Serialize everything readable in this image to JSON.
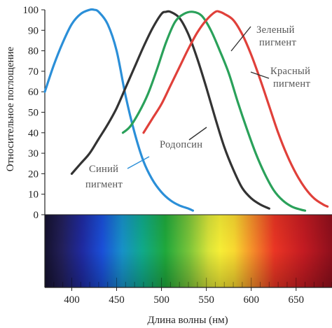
{
  "chart_data": {
    "type": "line",
    "xlabel": "Длина волны (нм)",
    "ylabel": "Относительное поглощение",
    "xlim": [
      370,
      690
    ],
    "ylim": [
      0,
      100
    ],
    "x_ticks": [
      400,
      450,
      500,
      550,
      600,
      650
    ],
    "y_ticks": [
      0,
      10,
      20,
      30,
      40,
      50,
      60,
      70,
      80,
      90,
      100
    ],
    "spectrum_bar": true,
    "series": [
      {
        "key": "blue",
        "color": "#2b8fd8",
        "x": [
          370,
          380,
          390,
          400,
          410,
          420,
          425,
          430,
          440,
          450,
          460,
          470,
          480,
          490,
          500,
          510,
          520,
          530,
          535
        ],
        "y": [
          60,
          73,
          84,
          93,
          98,
          100,
          100,
          99,
          93,
          80,
          58,
          40,
          26,
          17,
          11,
          7,
          4.5,
          3,
          2
        ]
      },
      {
        "key": "rhodopsin",
        "color": "#333333",
        "x": [
          400,
          410,
          420,
          430,
          440,
          450,
          460,
          470,
          480,
          490,
          500,
          505,
          510,
          520,
          530,
          540,
          550,
          560,
          570,
          580,
          590,
          600,
          610,
          620
        ],
        "y": [
          20,
          25,
          30,
          37,
          44,
          52,
          62,
          72,
          82,
          91,
          98,
          99,
          99,
          96,
          88,
          76,
          62,
          47,
          33,
          22,
          13,
          8,
          5,
          3
        ]
      },
      {
        "key": "green",
        "color": "#2aa15a",
        "x": [
          457,
          465,
          475,
          485,
          495,
          505,
          515,
          525,
          535,
          545,
          555,
          565,
          575,
          585,
          595,
          605,
          615,
          625,
          635,
          645,
          655,
          660
        ],
        "y": [
          40,
          43,
          50,
          59,
          71,
          84,
          94,
          98,
          99,
          97,
          90,
          80,
          69,
          55,
          42,
          30,
          20,
          12,
          7,
          4,
          2.5,
          2
        ]
      },
      {
        "key": "red",
        "color": "#e0403a",
        "x": [
          480,
          490,
          500,
          510,
          520,
          530,
          540,
          550,
          560,
          565,
          570,
          580,
          590,
          600,
          610,
          620,
          630,
          640,
          650,
          660,
          670,
          680,
          685
        ],
        "y": [
          40,
          47,
          54,
          63,
          72,
          81,
          89,
          95,
          99,
          99,
          98,
          95,
          88,
          78,
          66,
          53,
          40,
          29,
          20,
          13,
          8,
          5,
          4
        ]
      }
    ],
    "annotations": [
      {
        "text": "Зеленый",
        "series": "green"
      },
      {
        "text": "пигмент",
        "series": "green"
      },
      {
        "text": "Красный",
        "series": "red"
      },
      {
        "text": "пигмент",
        "series": "red"
      },
      {
        "text": "Родопсин",
        "series": "rhodopsin"
      },
      {
        "text": "Синий",
        "series": "blue"
      },
      {
        "text": "пигмент",
        "series": "blue"
      }
    ]
  }
}
